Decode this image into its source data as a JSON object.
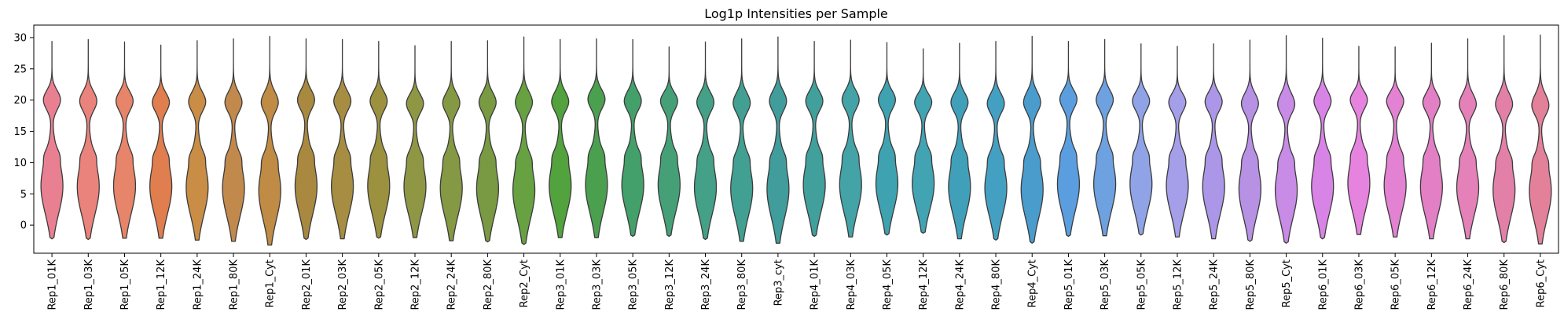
{
  "chart_data": {
    "type": "violin",
    "title": "Log1p Intensities per Sample",
    "xlabel": "",
    "ylabel": "",
    "ylim": [
      -4.5,
      32
    ],
    "yticks": [
      0,
      5,
      10,
      15,
      20,
      25,
      30
    ],
    "grid": false,
    "legend": "none",
    "categories": [
      "Rep1_01K",
      "Rep1_03K",
      "Rep1_05K",
      "Rep1_12K",
      "Rep1_24K",
      "Rep1_80K",
      "Rep1_Cyt",
      "Rep2_01K",
      "Rep2_03K",
      "Rep2_05K",
      "Rep2_12K",
      "Rep2_24K",
      "Rep2_80K",
      "Rep2_Cyt",
      "Rep3_01K",
      "Rep3_03K",
      "Rep3_05K",
      "Rep3_12K",
      "Rep3_24K",
      "Rep3_80K",
      "Rep3_cyt",
      "Rep4_01K",
      "Rep4_03K",
      "Rep4_05K",
      "Rep4_12K",
      "Rep4_24K",
      "Rep4_80K",
      "Rep4_Cyt",
      "Rep5_01K",
      "Rep5_03K",
      "Rep5_05K",
      "Rep5_12K",
      "Rep5_24K",
      "Rep5_80K",
      "Rep5_Cyt",
      "Rep6_01K",
      "Rep6_03K",
      "Rep6_05K",
      "Rep6_12K",
      "Rep6_24K",
      "Rep6_80K",
      "Rep6_Cyt"
    ],
    "min": [
      -2.2,
      -2.3,
      -2.1,
      -2.1,
      -2.4,
      -2.6,
      -3.2,
      -2.3,
      -2.2,
      -2.1,
      -2.0,
      -2.5,
      -2.7,
      -3.1,
      -2.0,
      -2.0,
      -1.8,
      -1.8,
      -2.3,
      -2.6,
      -2.9,
      -1.8,
      -1.9,
      -1.6,
      -1.3,
      -2.2,
      -2.4,
      -2.9,
      -1.8,
      -1.7,
      -1.6,
      -1.9,
      -2.2,
      -2.6,
      -2.9,
      -2.2,
      -1.5,
      -1.9,
      -2.2,
      -2.2,
      -2.8,
      -3.0
    ],
    "max": [
      29.4,
      29.7,
      29.3,
      28.8,
      29.5,
      29.8,
      30.2,
      29.8,
      29.7,
      29.4,
      28.7,
      29.4,
      29.5,
      30.1,
      29.7,
      29.8,
      29.7,
      28.5,
      29.3,
      29.8,
      30.1,
      29.4,
      29.6,
      29.2,
      28.2,
      29.1,
      29.4,
      30.2,
      29.4,
      29.7,
      29.0,
      28.6,
      29.0,
      29.6,
      30.3,
      29.9,
      28.6,
      28.5,
      29.1,
      29.8,
      30.3,
      30.4
    ],
    "mode": [
      20.2,
      20.0,
      20.0,
      19.8,
      19.9,
      19.8,
      19.8,
      20.2,
      20.0,
      20.0,
      19.6,
      19.7,
      19.8,
      19.8,
      19.9,
      20.3,
      20.0,
      20.0,
      19.8,
      19.7,
      20.0,
      20.0,
      20.2,
      20.2,
      19.8,
      19.8,
      19.6,
      19.8,
      20.3,
      20.2,
      20.0,
      19.8,
      19.9,
      19.6,
      19.5,
      20.0,
      20.2,
      20.0,
      19.8,
      19.5,
      19.5,
      19.3
    ],
    "colors": [
      "#e98092",
      "#e9837c",
      "#e6856a",
      "#e07e4f",
      "#c98d46",
      "#c2894d",
      "#bf8b45",
      "#a9893f",
      "#a68d42",
      "#9b913f",
      "#8f9744",
      "#859843",
      "#799942",
      "#67a142",
      "#52a23e",
      "#4ba04f",
      "#43a06a",
      "#45a078",
      "#44a087",
      "#41a092",
      "#419c9c",
      "#41a09c",
      "#43a3a6",
      "#3fa2b0",
      "#42a3b3",
      "#40a0ba",
      "#44a0c2",
      "#4a9ccd",
      "#5a9ee0",
      "#6da1e0",
      "#8fa3e6",
      "#a59ee9",
      "#ac96e8",
      "#b791e4",
      "#c88be6",
      "#d884e6",
      "#e583de",
      "#e381d2",
      "#e27fc5",
      "#e381b8",
      "#e280a8",
      "#e3819a"
    ]
  }
}
